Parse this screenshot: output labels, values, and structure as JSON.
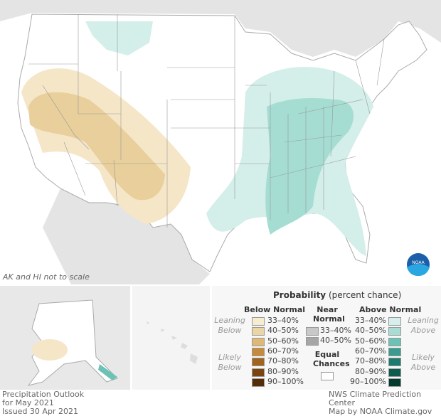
{
  "map": {
    "note": "AK and HI not to scale",
    "logo": "NOAA",
    "colors": {
      "leaning_below": "#f5e6c8",
      "below_40_50": "#ebd29e",
      "likely_below": "#dcbb7f",
      "leaning_above": "#d4eeea",
      "above_40_50": "#a5ddd3",
      "above_50_60": "#6cc3b5"
    }
  },
  "legend": {
    "title": "Probability",
    "title_suffix": "(percent chance)",
    "below": {
      "heading": "Below Normal",
      "leaning": "Leaning Below",
      "likely": "Likely Below",
      "items": [
        {
          "label": "33–40%",
          "color": "#f7ebd0"
        },
        {
          "label": "40–50%",
          "color": "#ecd5a4"
        },
        {
          "label": "50–60%",
          "color": "#ddb877"
        },
        {
          "label": "60–70%",
          "color": "#c68a3a"
        },
        {
          "label": "70–80%",
          "color": "#a0641e"
        },
        {
          "label": "80–90%",
          "color": "#7a4410"
        },
        {
          "label": "90–100%",
          "color": "#532c08"
        }
      ]
    },
    "near": {
      "heading": "Near Normal",
      "items": [
        {
          "label": "33–40%",
          "color": "#c8c8c8"
        },
        {
          "label": "40–50%",
          "color": "#a6a6a6"
        }
      ]
    },
    "equal": {
      "heading": "Equal Chances",
      "color": "#ffffff"
    },
    "above": {
      "heading": "Above Normal",
      "leaning": "Leaning Above",
      "likely": "Likely Above",
      "items": [
        {
          "label": "33–40%",
          "color": "#d6efec"
        },
        {
          "label": "40–50%",
          "color": "#a7ddd4"
        },
        {
          "label": "50–60%",
          "color": "#6cc2b4"
        },
        {
          "label": "60–70%",
          "color": "#3a9c8f"
        },
        {
          "label": "70–80%",
          "color": "#1d7a6e"
        },
        {
          "label": "80–90%",
          "color": "#0e5c50"
        },
        {
          "label": "90–100%",
          "color": "#053a30"
        }
      ]
    }
  },
  "footer": {
    "left": [
      "Precipitation Outlook",
      "for May 2021",
      "Issued 30 Apr 2021"
    ],
    "right": [
      "NWS Climate Prediction Center",
      "Map by NOAA Climate.gov"
    ]
  }
}
